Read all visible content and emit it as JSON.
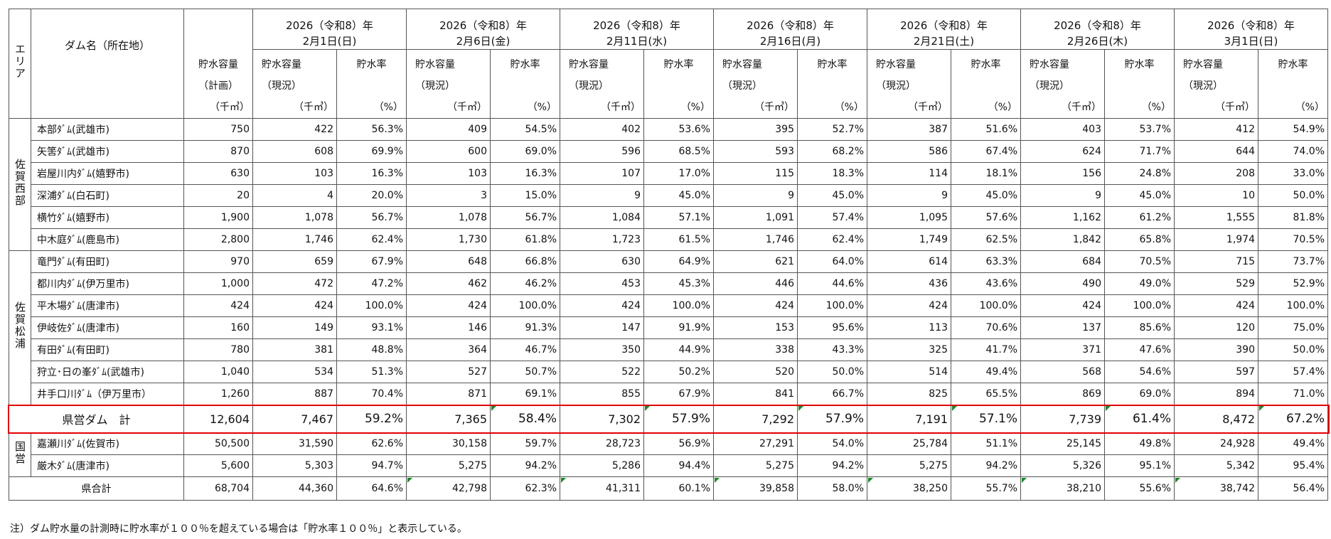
{
  "header": {
    "area_label": "エリア",
    "dam_label": "ダム名（所在地）",
    "capacity_plan": [
      "貯水容量",
      "（計画）",
      "（千㎥）"
    ],
    "capacity_now": [
      "貯水容量",
      "（現況）",
      "（千㎥）"
    ],
    "rate": [
      "貯水率",
      "（%）"
    ],
    "dates": [
      {
        "year": "2026（令和8）年",
        "day": "2月1日(日)"
      },
      {
        "year": "2026（令和8）年",
        "day": "2月6日(金)"
      },
      {
        "year": "2026（令和8）年",
        "day": "2月11日(水)"
      },
      {
        "year": "2026（令和8）年",
        "day": "2月16日(月)"
      },
      {
        "year": "2026（令和8）年",
        "day": "2月21日(土)"
      },
      {
        "year": "2026（令和8）年",
        "day": "2月26日(木)"
      },
      {
        "year": "2026（令和8）年",
        "day": "3月1日(日)"
      }
    ]
  },
  "areas": {
    "west": "佐賀西部",
    "matsuura": "佐賀松浦",
    "national": "国営"
  },
  "rows": [
    {
      "name": "本部ﾀﾞﾑ(武雄市)",
      "plan": "750",
      "v": [
        "422",
        "56.3%",
        "409",
        "54.5%",
        "402",
        "53.6%",
        "395",
        "52.7%",
        "387",
        "51.6%",
        "403",
        "53.7%",
        "412",
        "54.9%"
      ]
    },
    {
      "name": "矢筈ﾀﾞﾑ(武雄市)",
      "plan": "870",
      "v": [
        "608",
        "69.9%",
        "600",
        "69.0%",
        "596",
        "68.5%",
        "593",
        "68.2%",
        "586",
        "67.4%",
        "624",
        "71.7%",
        "644",
        "74.0%"
      ]
    },
    {
      "name": "岩屋川内ﾀﾞﾑ(嬉野市)",
      "plan": "630",
      "v": [
        "103",
        "16.3%",
        "103",
        "16.3%",
        "107",
        "17.0%",
        "115",
        "18.3%",
        "114",
        "18.1%",
        "156",
        "24.8%",
        "208",
        "33.0%"
      ]
    },
    {
      "name": "深浦ﾀﾞﾑ(白石町)",
      "plan": "20",
      "v": [
        "4",
        "20.0%",
        "3",
        "15.0%",
        "9",
        "45.0%",
        "9",
        "45.0%",
        "9",
        "45.0%",
        "9",
        "45.0%",
        "10",
        "50.0%"
      ]
    },
    {
      "name": "横竹ﾀﾞﾑ(嬉野市)",
      "plan": "1,900",
      "v": [
        "1,078",
        "56.7%",
        "1,078",
        "56.7%",
        "1,084",
        "57.1%",
        "1,091",
        "57.4%",
        "1,095",
        "57.6%",
        "1,162",
        "61.2%",
        "1,555",
        "81.8%"
      ]
    },
    {
      "name": "中木庭ﾀﾞﾑ(鹿島市)",
      "plan": "2,800",
      "v": [
        "1,746",
        "62.4%",
        "1,730",
        "61.8%",
        "1,723",
        "61.5%",
        "1,746",
        "62.4%",
        "1,749",
        "62.5%",
        "1,842",
        "65.8%",
        "1,974",
        "70.5%"
      ]
    },
    {
      "name": "竜門ﾀﾞﾑ(有田町)",
      "plan": "970",
      "v": [
        "659",
        "67.9%",
        "648",
        "66.8%",
        "630",
        "64.9%",
        "621",
        "64.0%",
        "614",
        "63.3%",
        "684",
        "70.5%",
        "715",
        "73.7%"
      ]
    },
    {
      "name": "都川内ﾀﾞﾑ(伊万里市)",
      "plan": "1,000",
      "v": [
        "472",
        "47.2%",
        "462",
        "46.2%",
        "453",
        "45.3%",
        "446",
        "44.6%",
        "436",
        "43.6%",
        "490",
        "49.0%",
        "529",
        "52.9%"
      ]
    },
    {
      "name": "平木場ﾀﾞﾑ(唐津市)",
      "plan": "424",
      "v": [
        "424",
        "100.0%",
        "424",
        "100.0%",
        "424",
        "100.0%",
        "424",
        "100.0%",
        "424",
        "100.0%",
        "424",
        "100.0%",
        "424",
        "100.0%"
      ]
    },
    {
      "name": "伊岐佐ﾀﾞﾑ(唐津市)",
      "plan": "160",
      "v": [
        "149",
        "93.1%",
        "146",
        "91.3%",
        "147",
        "91.9%",
        "153",
        "95.6%",
        "113",
        "70.6%",
        "137",
        "85.6%",
        "120",
        "75.0%"
      ]
    },
    {
      "name": "有田ﾀﾞﾑ(有田町)",
      "plan": "780",
      "v": [
        "381",
        "48.8%",
        "364",
        "46.7%",
        "350",
        "44.9%",
        "338",
        "43.3%",
        "325",
        "41.7%",
        "371",
        "47.6%",
        "390",
        "50.0%"
      ]
    },
    {
      "name": "狩立･日の峯ﾀﾞﾑ(武雄市)",
      "plan": "1,040",
      "v": [
        "534",
        "51.3%",
        "527",
        "50.7%",
        "522",
        "50.2%",
        "520",
        "50.0%",
        "514",
        "49.4%",
        "568",
        "54.6%",
        "597",
        "57.4%"
      ]
    },
    {
      "name": "井手口川ﾀﾞﾑ（伊万里市）",
      "plan": "1,260",
      "v": [
        "887",
        "70.4%",
        "871",
        "69.1%",
        "855",
        "67.9%",
        "841",
        "66.7%",
        "825",
        "65.5%",
        "869",
        "69.0%",
        "894",
        "71.0%"
      ]
    }
  ],
  "pref_total": {
    "label": "県営ダム　計",
    "plan": "12,604",
    "v": [
      "7,467",
      "59.2%",
      "7,365",
      "58.4%",
      "7,302",
      "57.9%",
      "7,292",
      "57.9%",
      "7,191",
      "57.1%",
      "7,739",
      "61.4%",
      "8,472",
      "67.2%"
    ]
  },
  "national_rows": [
    {
      "name": "嘉瀬川ﾀﾞﾑ(佐賀市)",
      "plan": "50,500",
      "v": [
        "31,590",
        "62.6%",
        "30,158",
        "59.7%",
        "28,723",
        "56.9%",
        "27,291",
        "54.0%",
        "25,784",
        "51.1%",
        "25,145",
        "49.8%",
        "24,928",
        "49.4%"
      ]
    },
    {
      "name": "厳木ﾀﾞﾑ(唐津市)",
      "plan": "5,600",
      "v": [
        "5,303",
        "94.7%",
        "5,275",
        "94.2%",
        "5,286",
        "94.4%",
        "5,275",
        "94.2%",
        "5,275",
        "94.2%",
        "5,326",
        "95.1%",
        "5,342",
        "95.4%"
      ]
    }
  ],
  "grand_total": {
    "label": "県合計",
    "plan": "68,704",
    "v": [
      "44,360",
      "64.6%",
      "42,798",
      "62.3%",
      "41,311",
      "60.1%",
      "39,858",
      "58.0%",
      "38,250",
      "55.7%",
      "38,210",
      "55.6%",
      "38,742",
      "56.4%"
    ]
  },
  "note": "注）ダム貯水量の計測時に貯水率が１００％を超えている場合は「貯水率１００％」と表示している。",
  "colors": {
    "highlight": "#e00000",
    "comment_marker": "#1a8a2a",
    "border": "#555555"
  }
}
